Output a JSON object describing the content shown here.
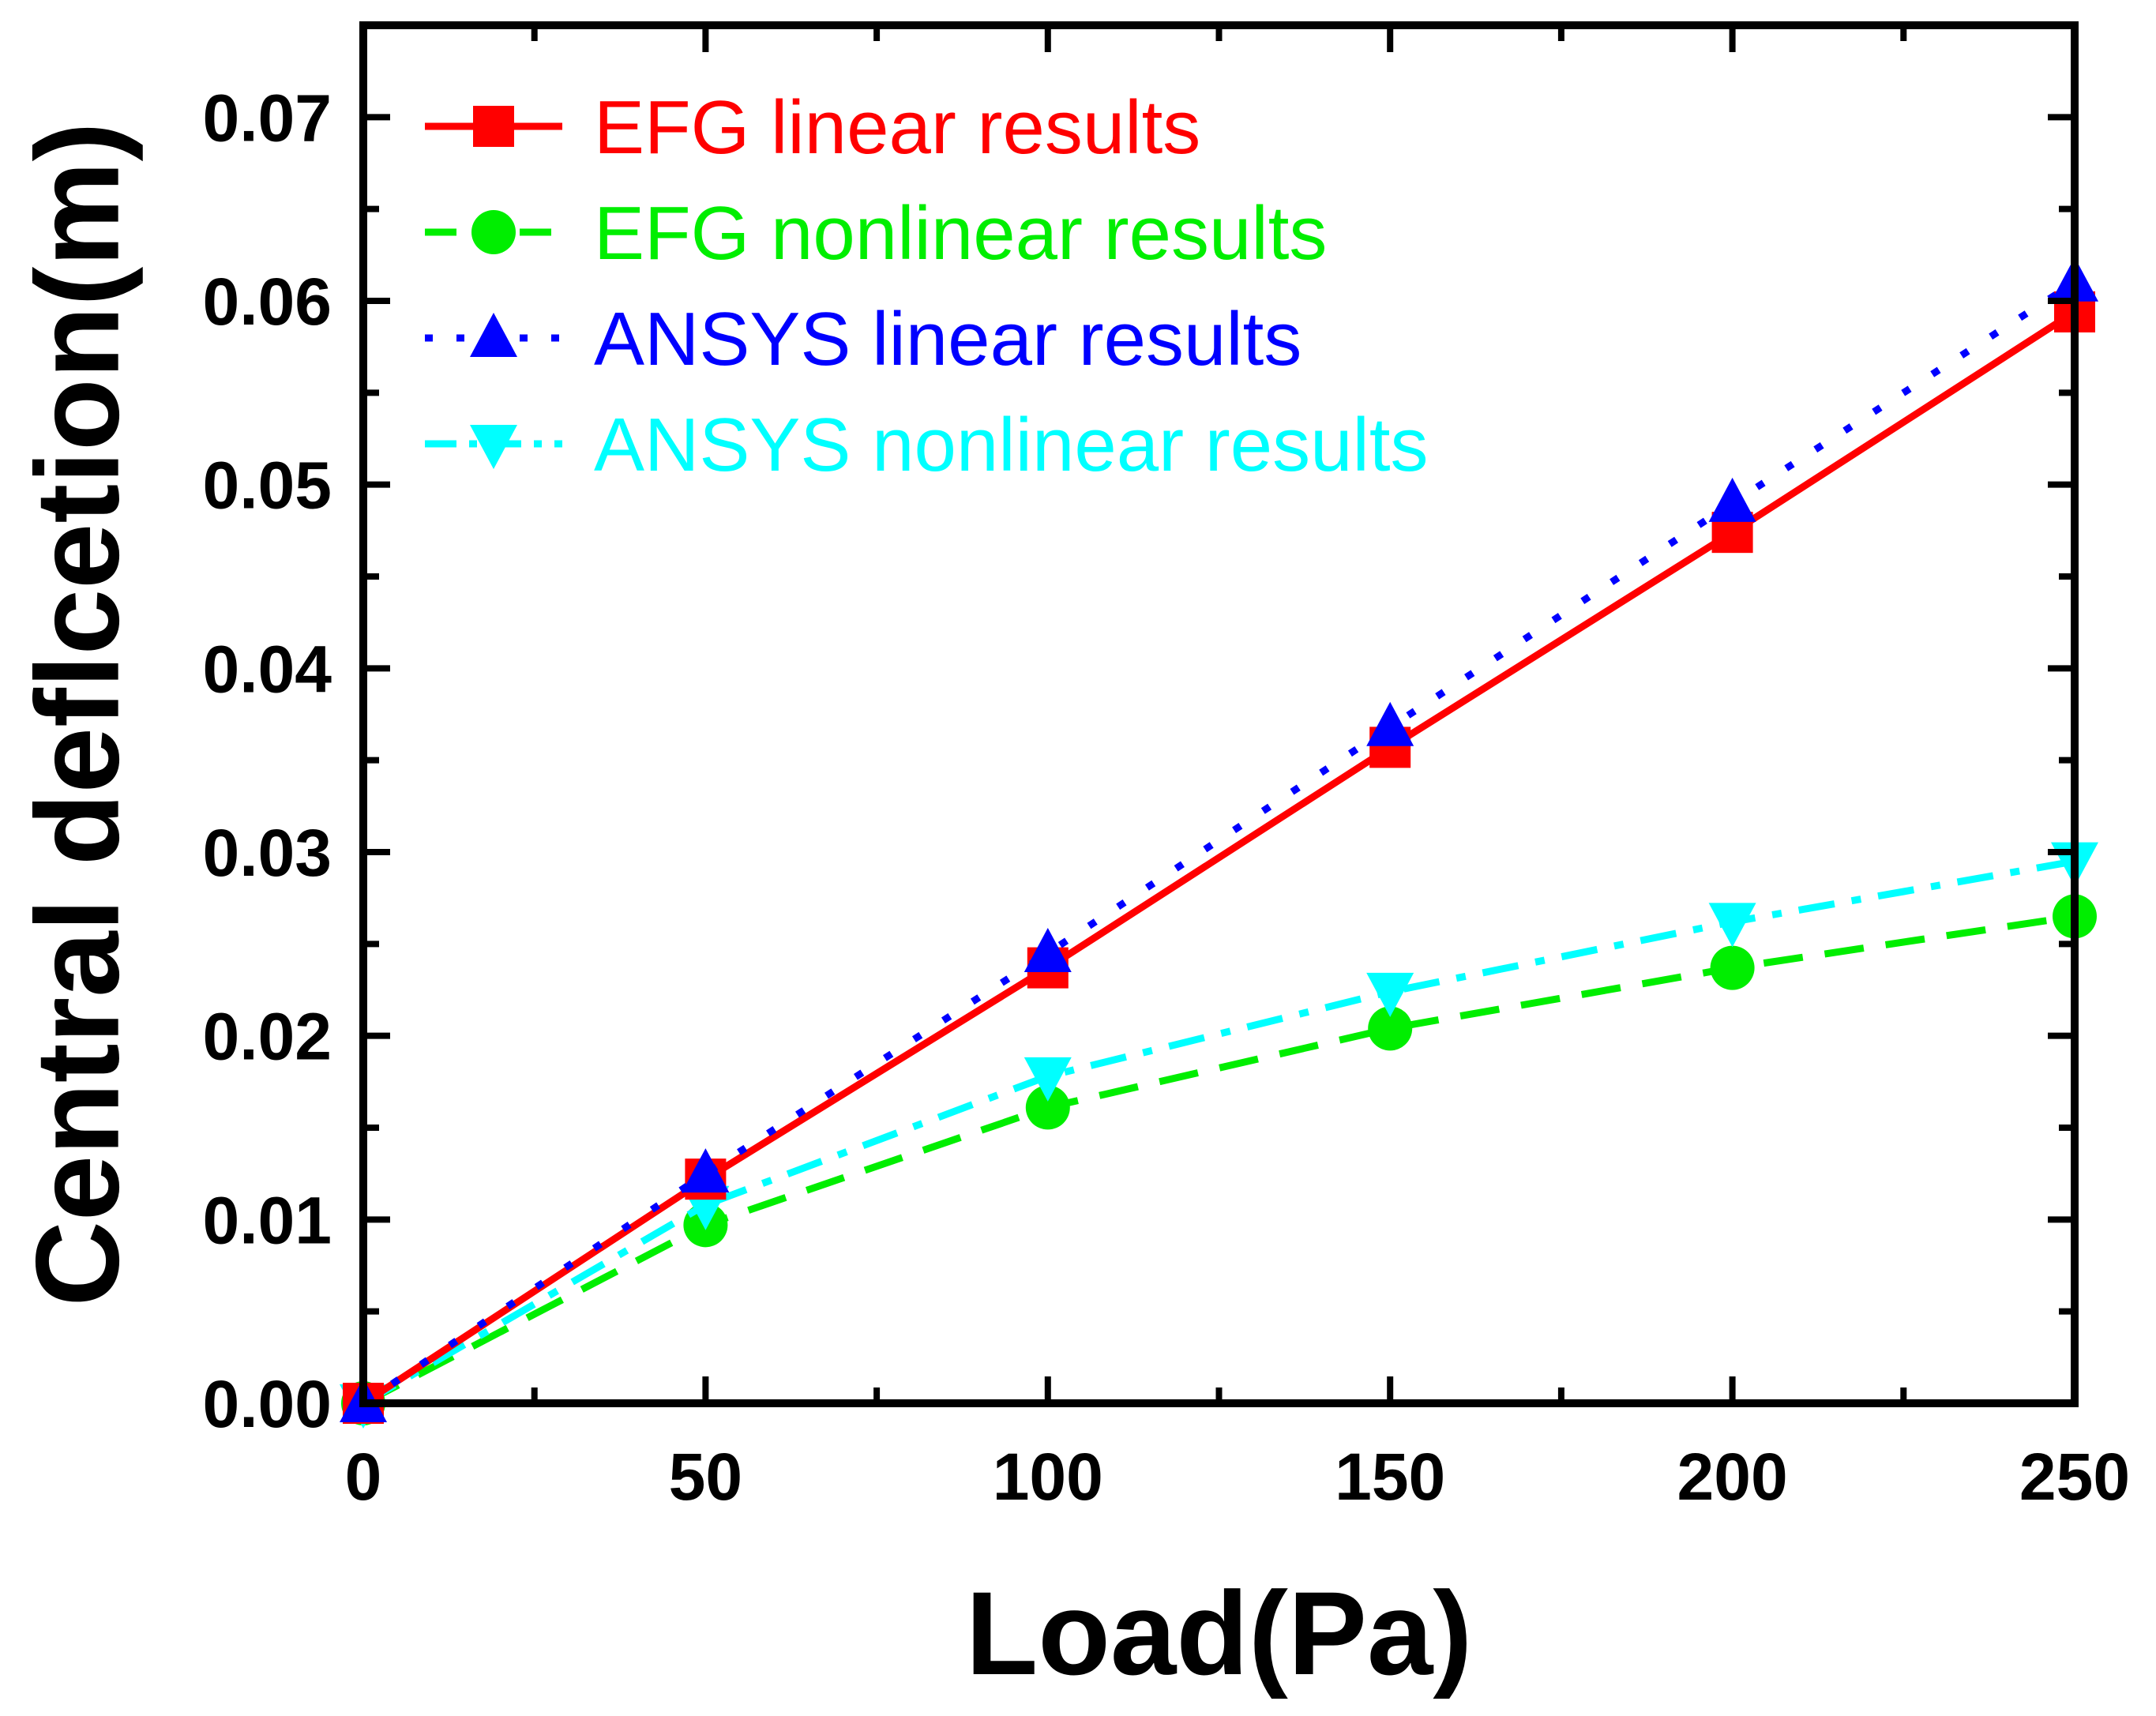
{
  "chart_data": {
    "type": "line",
    "title": "",
    "xlabel": "Load(Pa)",
    "ylabel": "Central deflcetion(m)",
    "xlim": [
      0,
      250
    ],
    "ylim": [
      0,
      0.075
    ],
    "xticks": [
      0,
      50,
      100,
      150,
      200,
      250
    ],
    "xtick_labels": [
      "0",
      "50",
      "100",
      "150",
      "200",
      "250"
    ],
    "yticks": [
      0,
      0.01,
      0.02,
      0.03,
      0.04,
      0.05,
      0.06,
      0.07
    ],
    "ytick_labels": [
      "0.00",
      "0.01",
      "0.02",
      "0.03",
      "0.04",
      "0.05",
      "0.06",
      "0.07"
    ],
    "grid": false,
    "legend_position": "top-left",
    "x": [
      0,
      50,
      100,
      150,
      200,
      250
    ],
    "series": [
      {
        "name": "EFG linear results",
        "color": "#ff0000",
        "marker": "square",
        "line": "solid",
        "values": [
          0,
          0.0122,
          0.0237,
          0.0357,
          0.0474,
          0.0594
        ]
      },
      {
        "name": "EFG nonlinear results",
        "color": "#00ee00",
        "marker": "circle",
        "line": "dash",
        "values": [
          0,
          0.0097,
          0.0161,
          0.0204,
          0.0237,
          0.0265
        ]
      },
      {
        "name": "ANSYS linear results",
        "color": "#0000ff",
        "marker": "triangle-up",
        "line": "dot",
        "values": [
          0,
          0.0125,
          0.0245,
          0.0368,
          0.049,
          0.061
        ]
      },
      {
        "name": "ANSYS nonlinear results",
        "color": "#00ffff",
        "marker": "triangle-down",
        "line": "dashdot",
        "values": [
          0,
          0.0108,
          0.0178,
          0.0224,
          0.0262,
          0.0295
        ]
      }
    ]
  }
}
